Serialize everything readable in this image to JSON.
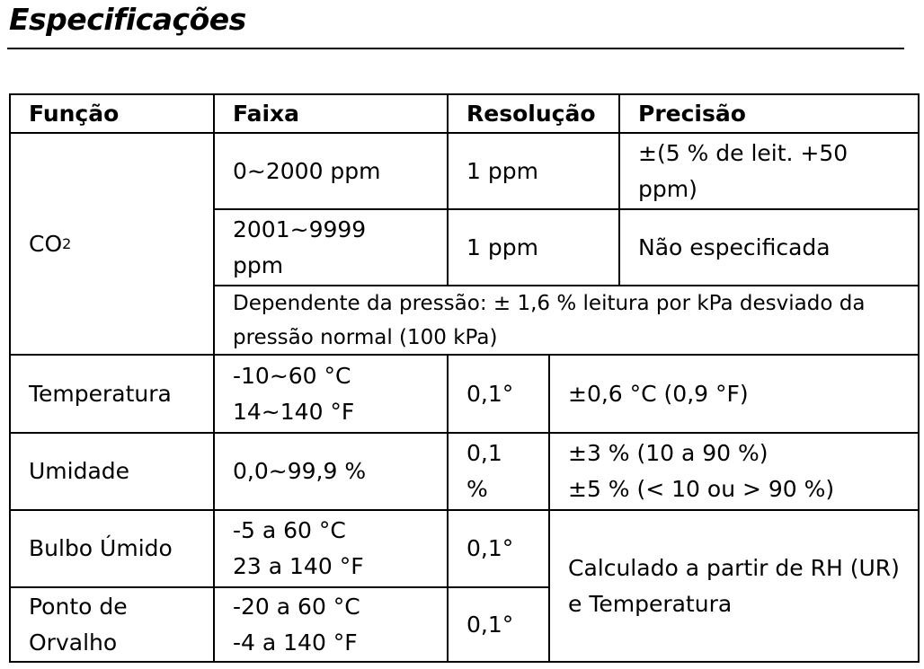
{
  "heading": "Especificações",
  "table": {
    "headers": {
      "function": "Função",
      "range": "Faixa",
      "resolution": "Resolução",
      "accuracy": "Precisão"
    },
    "co2": {
      "label_main": "CO",
      "label_sub": "2",
      "row1": {
        "range": "0~2000 ppm",
        "resolution": "1 ppm",
        "accuracy": "±(5 % de leit. +50 ppm)"
      },
      "row2": {
        "range": "2001~9999 ppm",
        "resolution": "1 ppm",
        "accuracy": "Não especificada"
      },
      "note": "Dependente da pressão: ± 1,6 % leitura por kPa desviado da pressão normal (100 kPa)"
    },
    "temperature": {
      "label": "Temperatura",
      "range_c": "-10~60 °C",
      "range_f": "14~140 °F",
      "resolution": "0,1°",
      "accuracy": "±0,6 °C (0,9 °F)"
    },
    "humidity": {
      "label": "Umidade",
      "range": "0,0~99,9 %",
      "resolution": "0,1 %",
      "accuracy_1": "±3 % (10 a 90 %)",
      "accuracy_2": "±5 % (< 10 ou > 90 %)"
    },
    "wet_bulb": {
      "label": "Bulbo Úmido",
      "range_c": "-5 a 60 °C",
      "range_f": "23 a 140 °F",
      "resolution": "0,1°"
    },
    "dew_point": {
      "label": "Ponto de Orvalho",
      "range_c": "-20 a 60 °C",
      "range_f": "-4 a 140 °F",
      "resolution": "0,1°"
    },
    "calculated_note": "Calculado a partir de RH (UR) e Temperatura"
  }
}
